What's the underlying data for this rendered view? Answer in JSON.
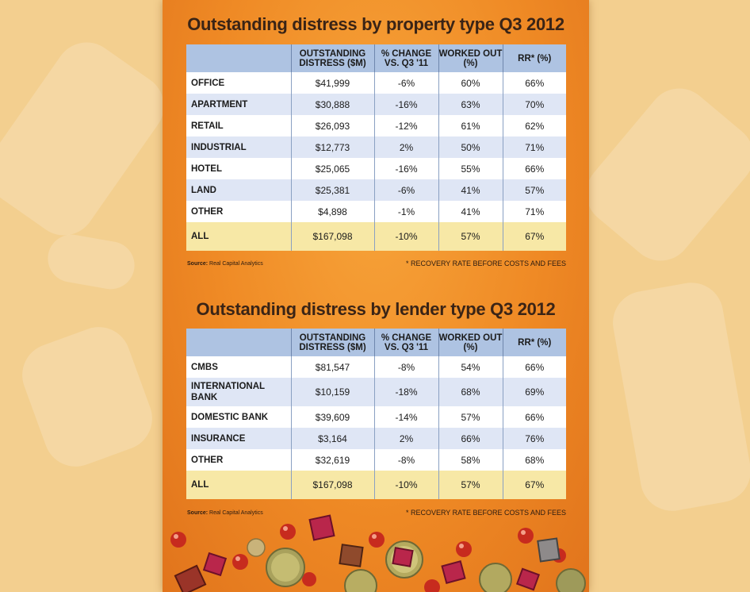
{
  "columns": [
    "OUTSTANDING DISTRESS ($M)",
    "% CHANGE VS. Q3 '11",
    "WORKED OUT (%)",
    "RR* (%)"
  ],
  "property_table": {
    "title": "Outstanding distress by property type Q3 2012",
    "rows": [
      {
        "label": "OFFICE",
        "distress": "$41,999",
        "change": "-6%",
        "worked": "60%",
        "rr": "66%"
      },
      {
        "label": "APARTMENT",
        "distress": "$30,888",
        "change": "-16%",
        "worked": "63%",
        "rr": "70%"
      },
      {
        "label": "RETAIL",
        "distress": "$26,093",
        "change": "-12%",
        "worked": "61%",
        "rr": "62%"
      },
      {
        "label": "INDUSTRIAL",
        "distress": "$12,773",
        "change": "2%",
        "worked": "50%",
        "rr": "71%"
      },
      {
        "label": "HOTEL",
        "distress": "$25,065",
        "change": "-16%",
        "worked": "55%",
        "rr": "66%"
      },
      {
        "label": "LAND",
        "distress": "$25,381",
        "change": "-6%",
        "worked": "41%",
        "rr": "57%"
      },
      {
        "label": "OTHER",
        "distress": "$4,898",
        "change": "-1%",
        "worked": "41%",
        "rr": "71%"
      }
    ],
    "total": {
      "label": "ALL",
      "distress": "$167,098",
      "change": "-10%",
      "worked": "57%",
      "rr": "67%"
    },
    "source_label": "Source:",
    "source": "Real Capital Analytics",
    "footnote": "* RECOVERY RATE BEFORE COSTS AND FEES"
  },
  "lender_table": {
    "title": "Outstanding distress by lender type Q3 2012",
    "rows": [
      {
        "label": "CMBS",
        "distress": "$81,547",
        "change": "-8%",
        "worked": "54%",
        "rr": "66%"
      },
      {
        "label": "INTERNATIONAL BANK",
        "distress": "$10,159",
        "change": "-18%",
        "worked": "68%",
        "rr": "69%"
      },
      {
        "label": "DOMESTIC BANK",
        "distress": "$39,609",
        "change": "-14%",
        "worked": "57%",
        "rr": "66%"
      },
      {
        "label": "INSURANCE",
        "distress": "$3,164",
        "change": "2%",
        "worked": "66%",
        "rr": "76%"
      },
      {
        "label": "OTHER",
        "distress": "$32,619",
        "change": "-8%",
        "worked": "58%",
        "rr": "68%"
      }
    ],
    "total": {
      "label": "ALL",
      "distress": "$167,098",
      "change": "-10%",
      "worked": "57%",
      "rr": "67%"
    },
    "source_label": "Source:",
    "source": "Real Capital Analytics",
    "footnote": "* RECOVERY RATE BEFORE COSTS AND FEES"
  },
  "colors": {
    "header": "#aec3e2",
    "row_white": "#ffffff",
    "row_blue": "#dfe6f5",
    "total_row": "#f7e8a6",
    "panel": "#ef8a25",
    "title": "#3a2416"
  }
}
